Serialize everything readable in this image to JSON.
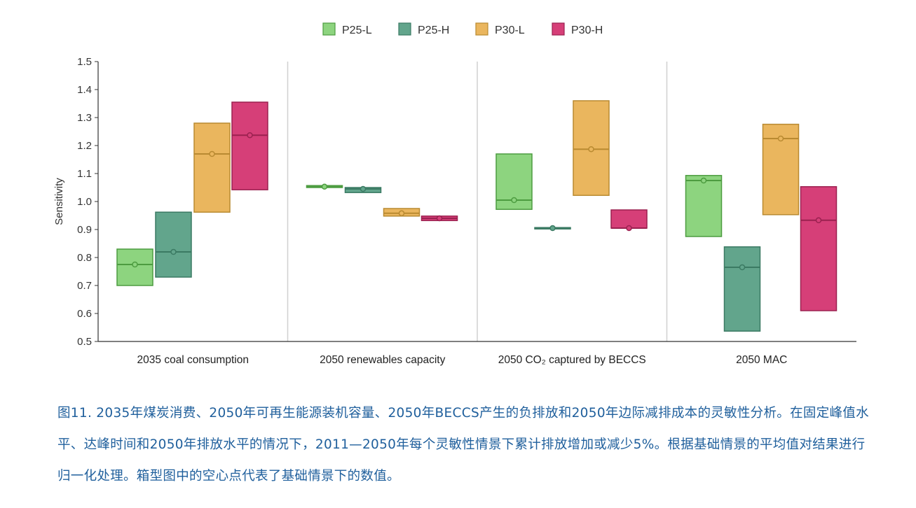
{
  "chart_data": {
    "type": "floating-box",
    "title": "",
    "xlabel": "",
    "ylabel": "Sensitivity",
    "ylim": [
      0.5,
      1.5
    ],
    "yticks": [
      "0.5",
      "0.6",
      "0.7",
      "0.8",
      "0.9",
      "1.0",
      "1.1",
      "1.2",
      "1.3",
      "1.4",
      "1.5"
    ],
    "grid": false,
    "legend_position": "top-center",
    "categories": [
      "2035  coal consumption",
      "2050 renewables capacity",
      "2050 CO₂ captured by BECCS",
      "2050 MAC"
    ],
    "series": [
      {
        "name": "P25-L",
        "color": "#8dd47f",
        "stroke": "#4d9c40",
        "low": [
          0.7,
          1.05,
          0.972,
          0.875
        ],
        "high": [
          0.83,
          1.057,
          1.17,
          1.093
        ],
        "base": [
          0.775,
          1.053,
          1.005,
          1.075
        ]
      },
      {
        "name": "P25-H",
        "color": "#62a58c",
        "stroke": "#3b7a63",
        "low": [
          0.73,
          1.032,
          0.903,
          0.537
        ],
        "high": [
          0.962,
          1.05,
          0.907,
          0.838
        ],
        "base": [
          0.82,
          1.045,
          0.905,
          0.765
        ]
      },
      {
        "name": "P30-L",
        "color": "#eab65e",
        "stroke": "#b98a31",
        "low": [
          0.962,
          0.948,
          1.022,
          0.953
        ],
        "high": [
          1.28,
          0.975,
          1.36,
          1.276
        ],
        "base": [
          1.17,
          0.958,
          1.187,
          1.225
        ]
      },
      {
        "name": "P30-H",
        "color": "#d63f78",
        "stroke": "#9b2150",
        "low": [
          1.042,
          0.932,
          0.905,
          0.61
        ],
        "high": [
          1.355,
          0.948,
          0.97,
          1.053
        ],
        "base": [
          1.237,
          0.94,
          0.905,
          0.933
        ]
      }
    ]
  },
  "caption": "图11. 2035年煤炭消费、2050年可再生能源装机容量、2050年BECCS产生的负排放和2050年边际减排成本的灵敏性分析。在固定峰值水平、达峰时间和2050年排放水平的情况下，2011—2050年每个灵敏性情景下累计排放增加或减少5%。根据基础情景的平均值对结果进行归一化处理。箱型图中的空心点代表了基础情景下的数值。"
}
